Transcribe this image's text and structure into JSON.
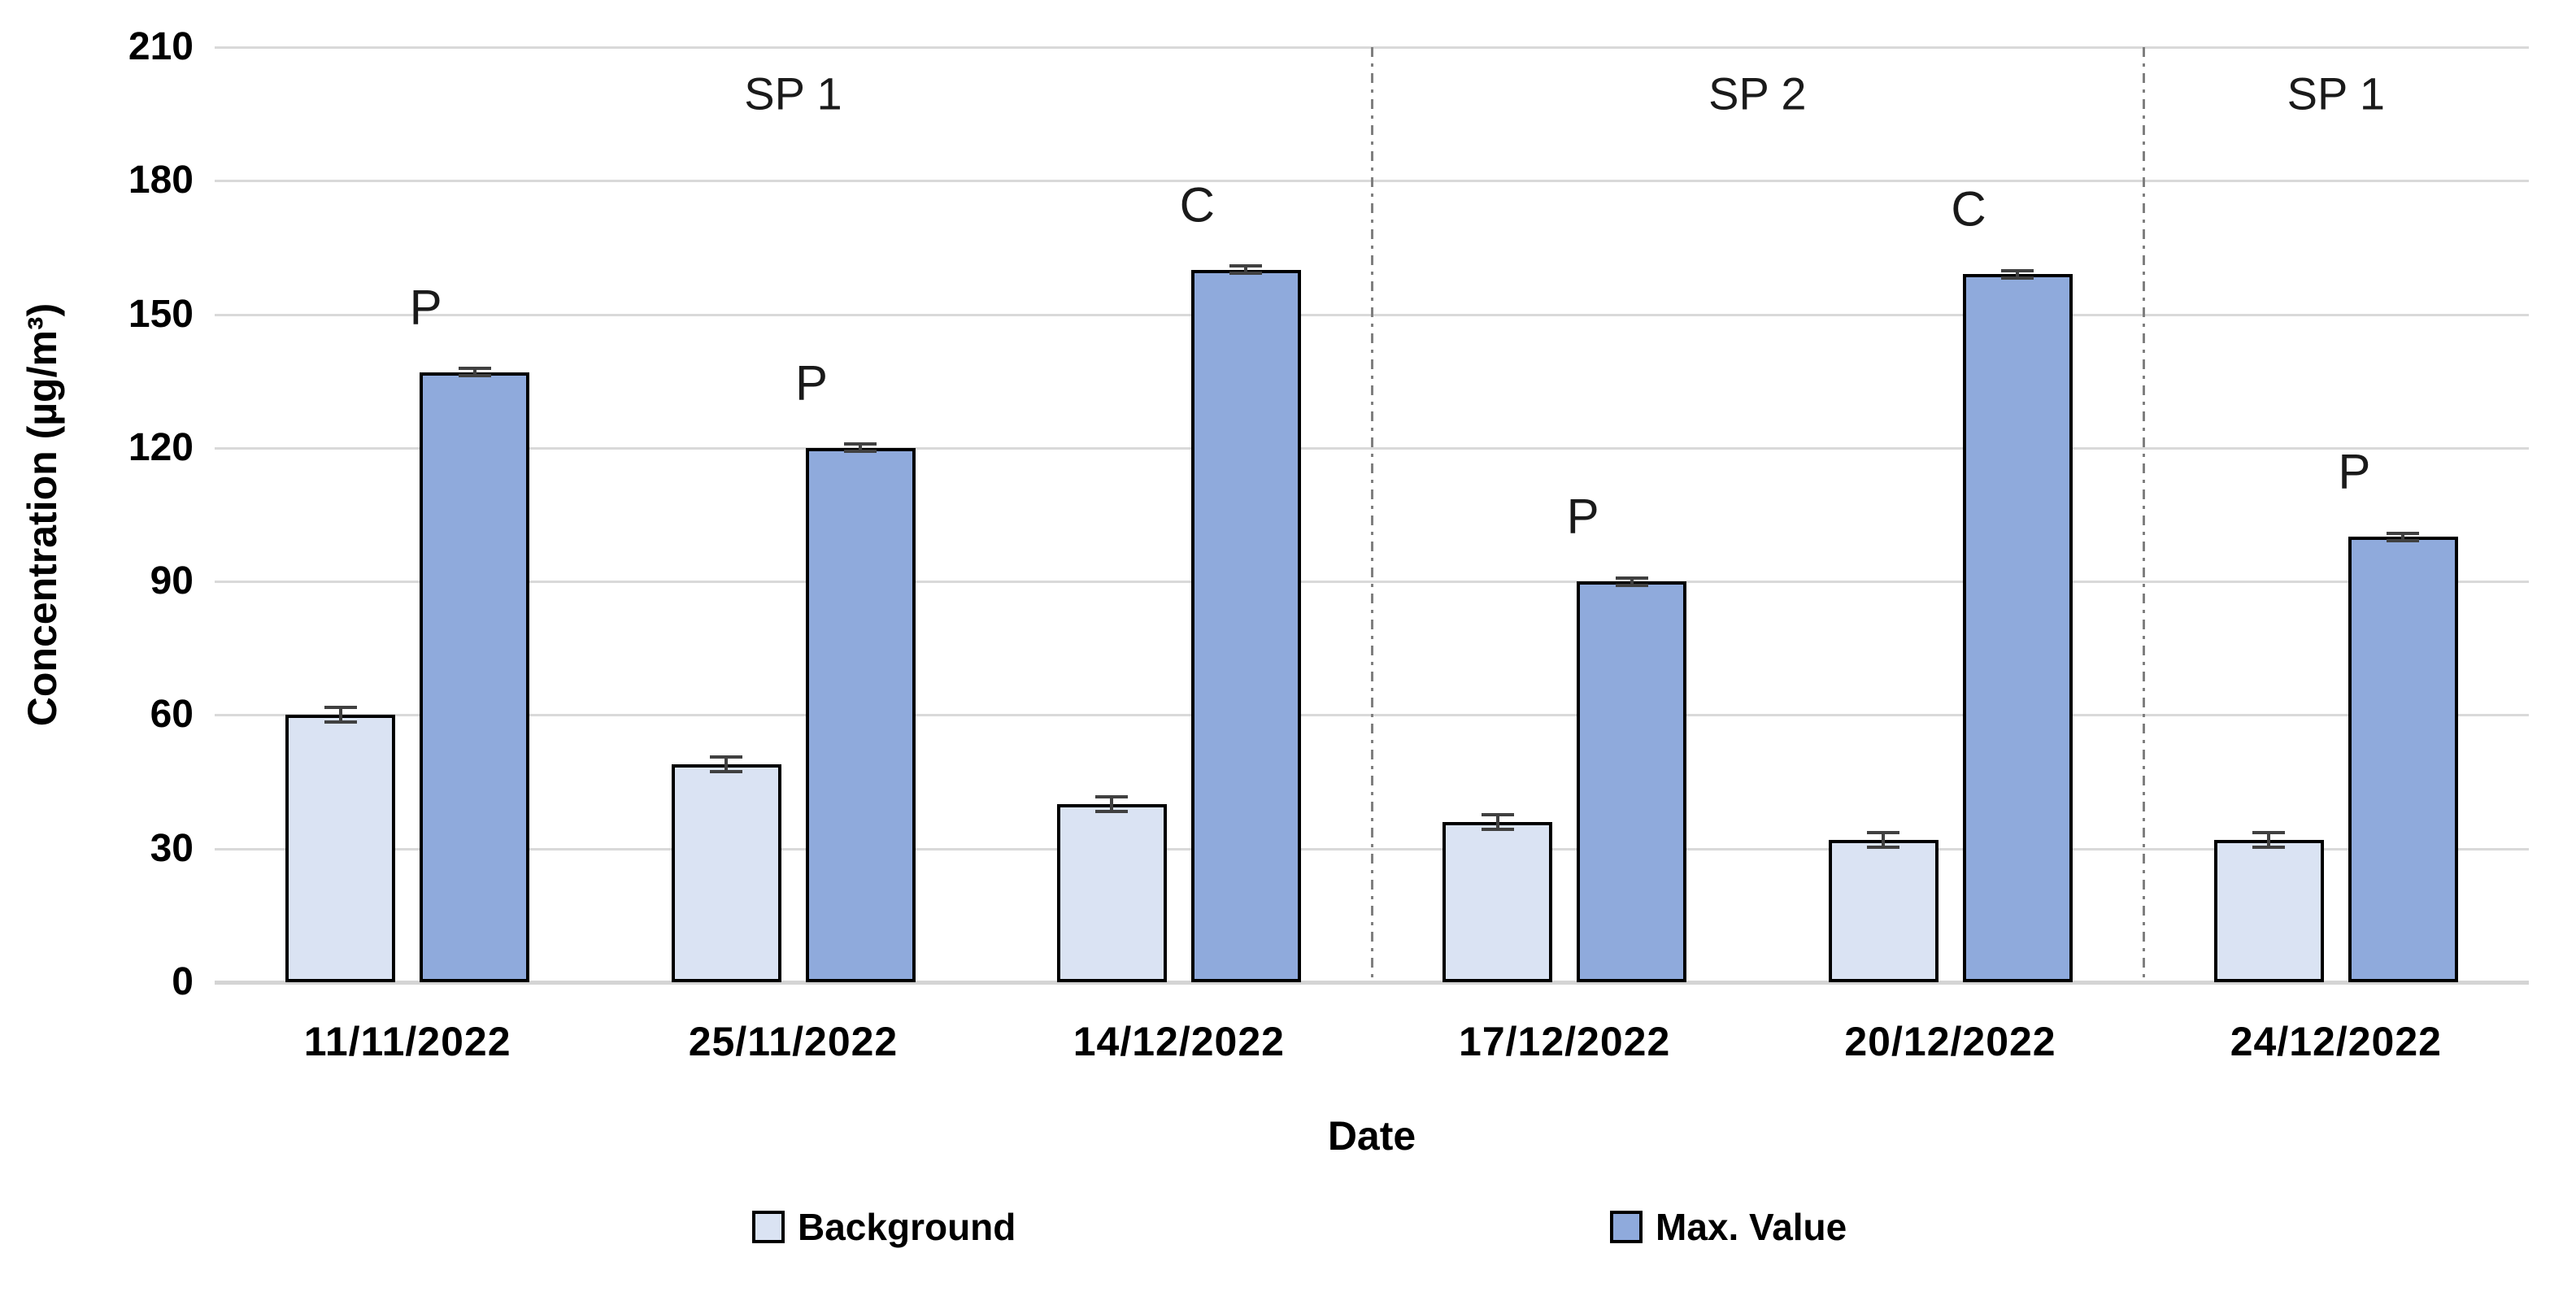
{
  "chart_data": {
    "type": "bar",
    "title": "",
    "xlabel": "Date",
    "ylabel": "Concentration (µg/m³)",
    "ylim": [
      0,
      210
    ],
    "yticks": [
      0,
      30,
      60,
      90,
      120,
      150,
      180,
      210
    ],
    "grid": true,
    "legend_position": "bottom",
    "categories": [
      "11/11/2022",
      "25/11/2022",
      "14/12/2022",
      "17/12/2022",
      "20/12/2022",
      "24/12/2022"
    ],
    "series": [
      {
        "name": "Background",
        "fill": "#dae3f3",
        "outline": "#000000",
        "values": [
          60,
          49,
          40,
          36,
          32,
          32
        ],
        "errors": [
          2,
          2,
          2,
          2,
          2,
          2
        ]
      },
      {
        "name": "Max. Value",
        "fill": "#8faadc",
        "outline": "#000000",
        "values": [
          137,
          120,
          160,
          90,
          159,
          100
        ],
        "errors": [
          1.2,
          1.2,
          1.2,
          1.2,
          1.2,
          1.2
        ]
      }
    ],
    "bar_annotations": [
      "P",
      "P",
      "C",
      "P",
      "C",
      "P"
    ],
    "sections": [
      {
        "label": "SP 1",
        "from": 0,
        "to": 2
      },
      {
        "label": "SP 2",
        "from": 3,
        "to": 4
      },
      {
        "label": "SP 1",
        "from": 5,
        "to": 5
      }
    ],
    "colors": {
      "gridline": "#d9d9d9",
      "axis_line": "#d4d4d4",
      "divider": "#7f7f7f",
      "error_bar": "#404040",
      "text": "#000000"
    }
  }
}
